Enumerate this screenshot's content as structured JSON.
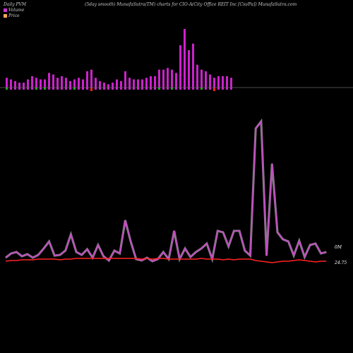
{
  "header": {
    "left": "Daily PVM",
    "center": "(5day smooth) MunafaSutra(TM) charts for CIO-A",
    "right": "(City Office  REIT Inc [Cio/Pa]) MunafaSutra.com"
  },
  "legend": {
    "volume_label": "Volume",
    "price_label": "Price",
    "volume_color": "#cc33cc",
    "price_color": "#ffaa55"
  },
  "colors": {
    "background": "#000000",
    "volume_up": "#cc22cc",
    "volume_down": "#ff2222",
    "volume_neutral": "#22aa22",
    "volume_line": "#cc44cc",
    "price_line": "#ff2222"
  },
  "chart_data": [
    {
      "type": "bar",
      "series": [
        {
          "values": [
            6,
            5,
            4,
            3,
            3,
            5,
            7,
            6,
            5,
            5,
            9,
            8,
            6,
            7,
            6,
            4,
            5,
            6,
            5,
            10,
            11,
            6,
            4,
            3,
            2,
            3,
            5,
            4,
            10,
            6,
            5,
            5,
            5,
            6,
            7,
            7,
            11,
            11,
            12,
            11,
            9,
            26,
            36,
            23,
            27,
            14,
            11,
            10,
            8,
            6,
            7,
            7,
            7,
            6
          ],
          "colors": [
            "g",
            "p",
            "p",
            "p",
            "p",
            "p",
            "p",
            "g",
            "p",
            "g",
            "p",
            "p",
            "p",
            "p",
            "p",
            "p",
            "g",
            "p",
            "p",
            "p",
            "r",
            "p",
            "p",
            "p",
            "p",
            "p",
            "p",
            "p",
            "p",
            "p",
            "p",
            "p",
            "p",
            "p",
            "p",
            "p",
            "g",
            "p",
            "p",
            "g",
            "p",
            "p",
            "p",
            "p",
            "p",
            "p",
            "g",
            "p",
            "p",
            "r",
            "p",
            "p",
            "p",
            "p"
          ]
        }
      ]
    },
    {
      "type": "line",
      "value_label": "0M",
      "price_label": "24.75",
      "series": [
        {
          "values": [
            12,
            18,
            20,
            14,
            17,
            12,
            16,
            25,
            35,
            15,
            16,
            22,
            45,
            20,
            16,
            24,
            12,
            30,
            14,
            8,
            22,
            18,
            65,
            35,
            10,
            8,
            12,
            7,
            10,
            20,
            10,
            50,
            10,
            25,
            13,
            20,
            25,
            32,
            10,
            50,
            48,
            28,
            50,
            50,
            22,
            15,
            195,
            205,
            15,
            145,
            48,
            38,
            35,
            15,
            36,
            13,
            30,
            32,
            18,
            20
          ]
        },
        {
          "values": [
            7,
            8,
            8,
            9,
            9,
            9,
            10,
            10,
            10,
            10,
            9,
            10,
            10,
            11,
            11,
            11,
            11,
            11,
            11,
            11,
            11,
            11,
            11,
            11,
            11,
            10,
            11,
            10,
            11,
            11,
            10,
            10,
            10,
            10,
            10,
            10,
            11,
            10,
            10,
            10,
            9,
            10,
            9,
            10,
            10,
            10,
            8,
            7,
            6,
            5,
            6,
            7,
            7,
            8,
            9,
            8,
            7,
            6,
            7,
            7
          ]
        }
      ]
    }
  ]
}
